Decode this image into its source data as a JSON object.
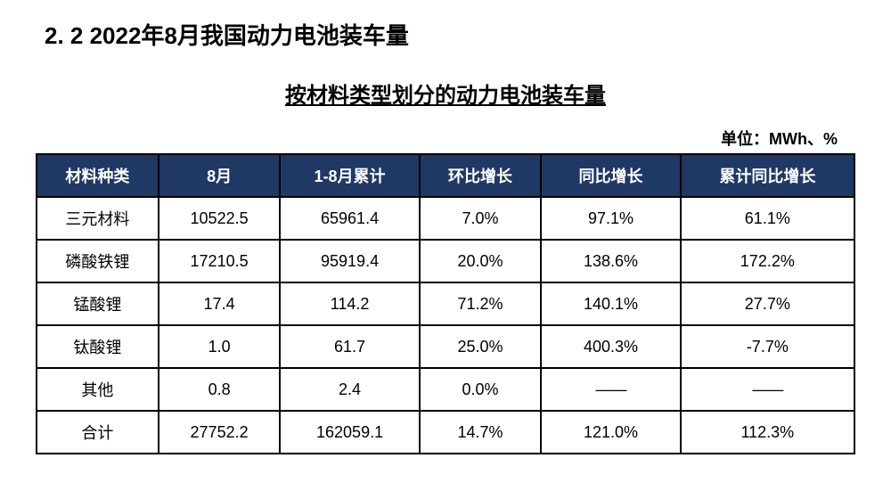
{
  "section_heading": "2. 2 2022年8月我国动力电池装车量",
  "table_title": "按材料类型划分的动力电池装车量",
  "unit_label": "单位：MWh、%",
  "table": {
    "type": "table",
    "header_bg": "#1f3864",
    "header_fg": "#ffffff",
    "border_color": "#000000",
    "cell_bg": "#ffffff",
    "cell_fg": "#000000",
    "font_size": 18,
    "header_font_size": 18,
    "columns": [
      {
        "label": "材料种类",
        "width": "14%",
        "align": "center"
      },
      {
        "label": "8月",
        "width": "14%",
        "align": "center"
      },
      {
        "label": "1-8月累计",
        "width": "16%",
        "align": "center"
      },
      {
        "label": "环比增长",
        "width": "14%",
        "align": "center"
      },
      {
        "label": "同比增长",
        "width": "16%",
        "align": "center"
      },
      {
        "label": "累计同比增长",
        "width": "20%",
        "align": "center"
      }
    ],
    "rows": [
      [
        "三元材料",
        "10522.5",
        "65961.4",
        "7.0%",
        "97.1%",
        "61.1%"
      ],
      [
        "磷酸铁锂",
        "17210.5",
        "95919.4",
        "20.0%",
        "138.6%",
        "172.2%"
      ],
      [
        "锰酸锂",
        "17.4",
        "114.2",
        "71.2%",
        "140.1%",
        "27.7%"
      ],
      [
        "钛酸锂",
        "1.0",
        "61.7",
        "25.0%",
        "400.3%",
        "-7.7%"
      ],
      [
        "其他",
        "0.8",
        "2.4",
        "0.0%",
        "——",
        "——"
      ],
      [
        "合计",
        "27752.2",
        "162059.1",
        "14.7%",
        "121.0%",
        "112.3%"
      ]
    ]
  }
}
